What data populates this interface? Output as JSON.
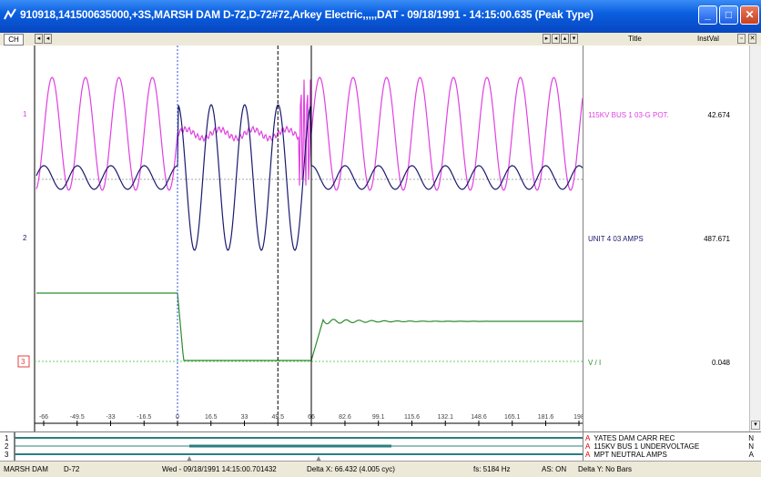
{
  "window": {
    "title": "910918,141500635000,+3S,MARSH DAM    D-72,D-72#72,Arkey Electric,,,,,DAT - 09/18/1991 - 14:15:00.635 (Peak Type)",
    "minimize_icon": "minimize-icon",
    "maximize_icon": "maximize-icon",
    "close_icon": "close-icon"
  },
  "toolbar": {
    "ch_label": "CH",
    "col_title": "Title",
    "col_instval": "InstVal"
  },
  "channels": [
    {
      "number": "1",
      "title": "115KV BUS 1 03-G POT.",
      "instval": "42.674",
      "color": "#e040e0"
    },
    {
      "number": "2",
      "title": "UNIT 4 03 AMPS",
      "instval": "487.671",
      "color": "#1a1a6e"
    },
    {
      "number": "3",
      "title": "V / I",
      "instval": "0.048",
      "color": "#2e8b2e"
    }
  ],
  "chart_data": {
    "type": "line",
    "x_ticks": [
      "-66",
      "-49.5",
      "-33",
      "-16.5",
      "0",
      "16.5",
      "33",
      "49.5",
      "66",
      "82.6",
      "99.1",
      "115.6",
      "132.1",
      "148.6",
      "165.1",
      "181.6",
      "198"
    ],
    "xlim": [
      -66,
      198
    ],
    "cursors": [
      0,
      49.5,
      66
    ]
  },
  "digital": {
    "numbers": [
      "1",
      "2",
      "3"
    ],
    "items": [
      {
        "flag": "A",
        "label": "YATES DAM CARR REC",
        "state": "N"
      },
      {
        "flag": "A",
        "label": "115KV BUS 1 UNDERVOLTAGE",
        "state": "N"
      },
      {
        "flag": "A",
        "label": "MPT NEUTRAL AMPS",
        "state": "A"
      }
    ]
  },
  "status": {
    "station": "MARSH DAM",
    "device": "D-72",
    "datetime": "Wed - 09/18/1991 14:15:00.701432",
    "delta_x": "Delta X: 66.432 (4.005 cyc)",
    "fs": "fs:  5184 Hz",
    "as": "AS: ON",
    "delta_y": "Delta Y:  No Bars"
  }
}
